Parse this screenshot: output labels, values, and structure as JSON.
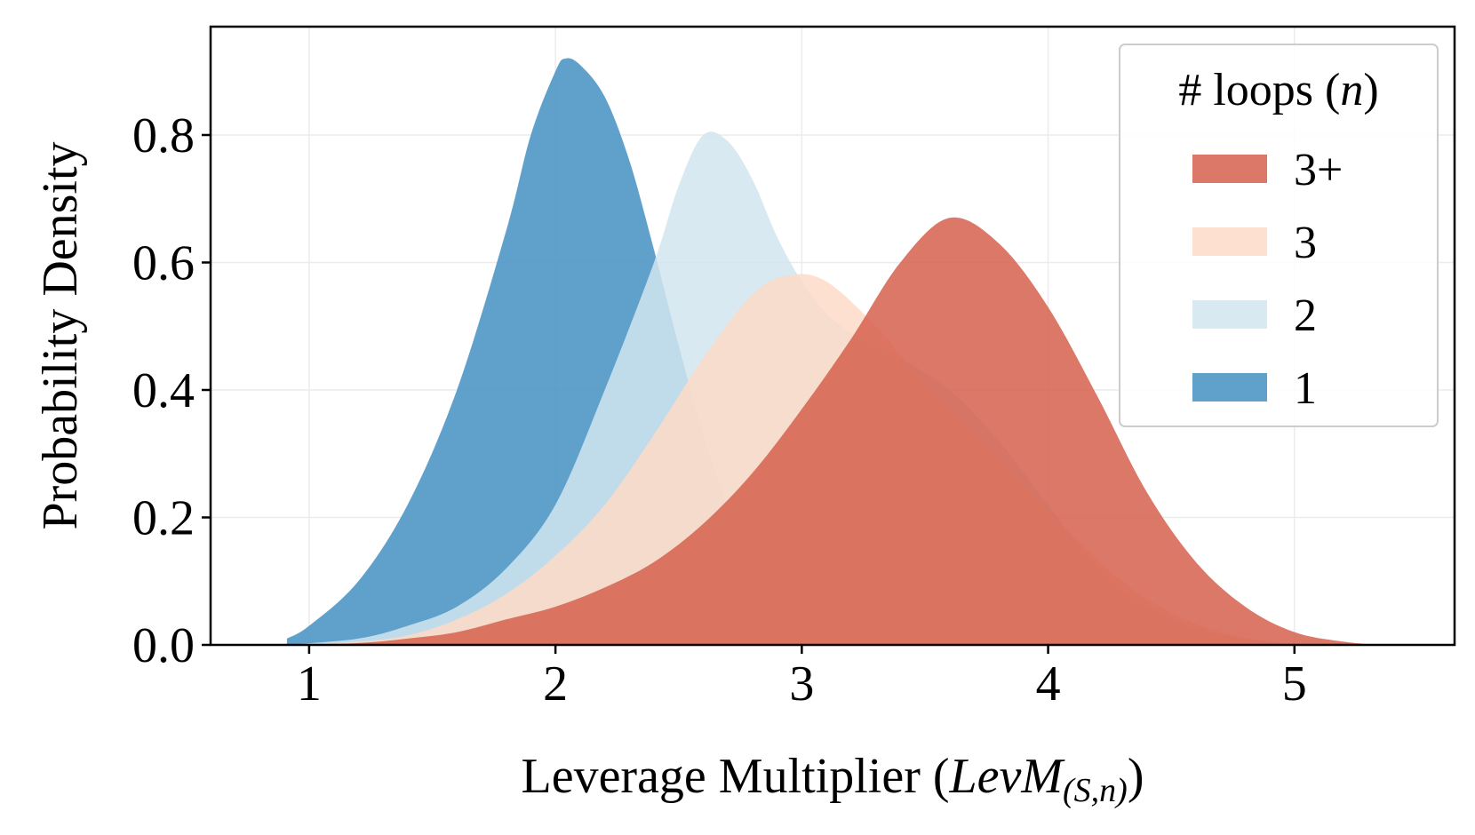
{
  "chart_data": {
    "type": "area",
    "xlabel": "Leverage Multiplier (",
    "xlabel_math": "LevM",
    "xlabel_sub": "(S,n)",
    "xlabel_close": ")",
    "ylabel": "Probability Density",
    "xlim": [
      0.6,
      5.65
    ],
    "ylim": [
      0,
      0.97
    ],
    "xticks": [
      1,
      2,
      3,
      4,
      5
    ],
    "yticks": [
      0.0,
      0.2,
      0.4,
      0.6,
      0.8
    ],
    "xtick_labels": [
      "1",
      "2",
      "3",
      "4",
      "5"
    ],
    "ytick_labels": [
      "0.0",
      "0.2",
      "0.4",
      "0.6",
      "0.8"
    ],
    "grid": true,
    "legend": {
      "placement": "top-right",
      "title": "# loops (",
      "title_var": "n",
      "title_close": ")",
      "entries": [
        "3+",
        "3",
        "2",
        "1"
      ]
    },
    "series": [
      {
        "name": "1",
        "color": "#4a94c4",
        "opacity": 0.88,
        "points": [
          [
            0.91,
            0.01
          ],
          [
            1.0,
            0.03
          ],
          [
            1.2,
            0.1
          ],
          [
            1.4,
            0.22
          ],
          [
            1.6,
            0.4
          ],
          [
            1.8,
            0.65
          ],
          [
            1.9,
            0.8
          ],
          [
            2.0,
            0.9
          ],
          [
            2.04,
            0.92
          ],
          [
            2.1,
            0.91
          ],
          [
            2.2,
            0.86
          ],
          [
            2.3,
            0.76
          ],
          [
            2.4,
            0.62
          ],
          [
            2.5,
            0.47
          ],
          [
            2.6,
            0.33
          ],
          [
            2.7,
            0.22
          ],
          [
            2.8,
            0.14
          ],
          [
            3.0,
            0.06
          ],
          [
            3.2,
            0.02
          ],
          [
            3.4,
            0.005
          ],
          [
            3.6,
            0.0
          ]
        ]
      },
      {
        "name": "2",
        "color": "#d1e5f0",
        "opacity": 0.85,
        "points": [
          [
            0.91,
            0.0
          ],
          [
            1.2,
            0.01
          ],
          [
            1.4,
            0.03
          ],
          [
            1.6,
            0.06
          ],
          [
            1.8,
            0.12
          ],
          [
            2.0,
            0.22
          ],
          [
            2.2,
            0.4
          ],
          [
            2.4,
            0.6
          ],
          [
            2.5,
            0.72
          ],
          [
            2.6,
            0.8
          ],
          [
            2.7,
            0.79
          ],
          [
            2.8,
            0.73
          ],
          [
            2.9,
            0.64
          ],
          [
            3.0,
            0.57
          ],
          [
            3.1,
            0.52
          ],
          [
            3.2,
            0.49
          ],
          [
            3.4,
            0.45
          ],
          [
            3.6,
            0.4
          ],
          [
            3.8,
            0.32
          ],
          [
            4.0,
            0.22
          ],
          [
            4.2,
            0.12
          ],
          [
            4.4,
            0.06
          ],
          [
            4.6,
            0.025
          ],
          [
            4.8,
            0.01
          ],
          [
            5.0,
            0.0
          ]
        ]
      },
      {
        "name": "3",
        "color": "#fddbc7",
        "opacity": 0.85,
        "points": [
          [
            0.91,
            0.0
          ],
          [
            1.2,
            0.005
          ],
          [
            1.4,
            0.015
          ],
          [
            1.6,
            0.04
          ],
          [
            1.8,
            0.08
          ],
          [
            2.0,
            0.14
          ],
          [
            2.2,
            0.22
          ],
          [
            2.4,
            0.33
          ],
          [
            2.6,
            0.45
          ],
          [
            2.8,
            0.55
          ],
          [
            2.95,
            0.58
          ],
          [
            3.1,
            0.57
          ],
          [
            3.3,
            0.5
          ],
          [
            3.5,
            0.41
          ],
          [
            3.7,
            0.33
          ],
          [
            3.9,
            0.25
          ],
          [
            4.1,
            0.17
          ],
          [
            4.3,
            0.1
          ],
          [
            4.5,
            0.05
          ],
          [
            4.7,
            0.02
          ],
          [
            4.9,
            0.005
          ],
          [
            5.1,
            0.0
          ]
        ]
      },
      {
        "name": "3+",
        "color": "#d6604d",
        "opacity": 0.85,
        "points": [
          [
            0.91,
            0.0
          ],
          [
            1.2,
            0.003
          ],
          [
            1.4,
            0.01
          ],
          [
            1.6,
            0.02
          ],
          [
            1.8,
            0.04
          ],
          [
            2.0,
            0.06
          ],
          [
            2.2,
            0.09
          ],
          [
            2.4,
            0.13
          ],
          [
            2.6,
            0.19
          ],
          [
            2.8,
            0.27
          ],
          [
            3.0,
            0.37
          ],
          [
            3.2,
            0.48
          ],
          [
            3.4,
            0.6
          ],
          [
            3.6,
            0.67
          ],
          [
            3.8,
            0.63
          ],
          [
            4.0,
            0.53
          ],
          [
            4.2,
            0.39
          ],
          [
            4.4,
            0.24
          ],
          [
            4.6,
            0.13
          ],
          [
            4.8,
            0.06
          ],
          [
            5.0,
            0.02
          ],
          [
            5.2,
            0.005
          ],
          [
            5.35,
            0.0
          ]
        ]
      }
    ]
  }
}
